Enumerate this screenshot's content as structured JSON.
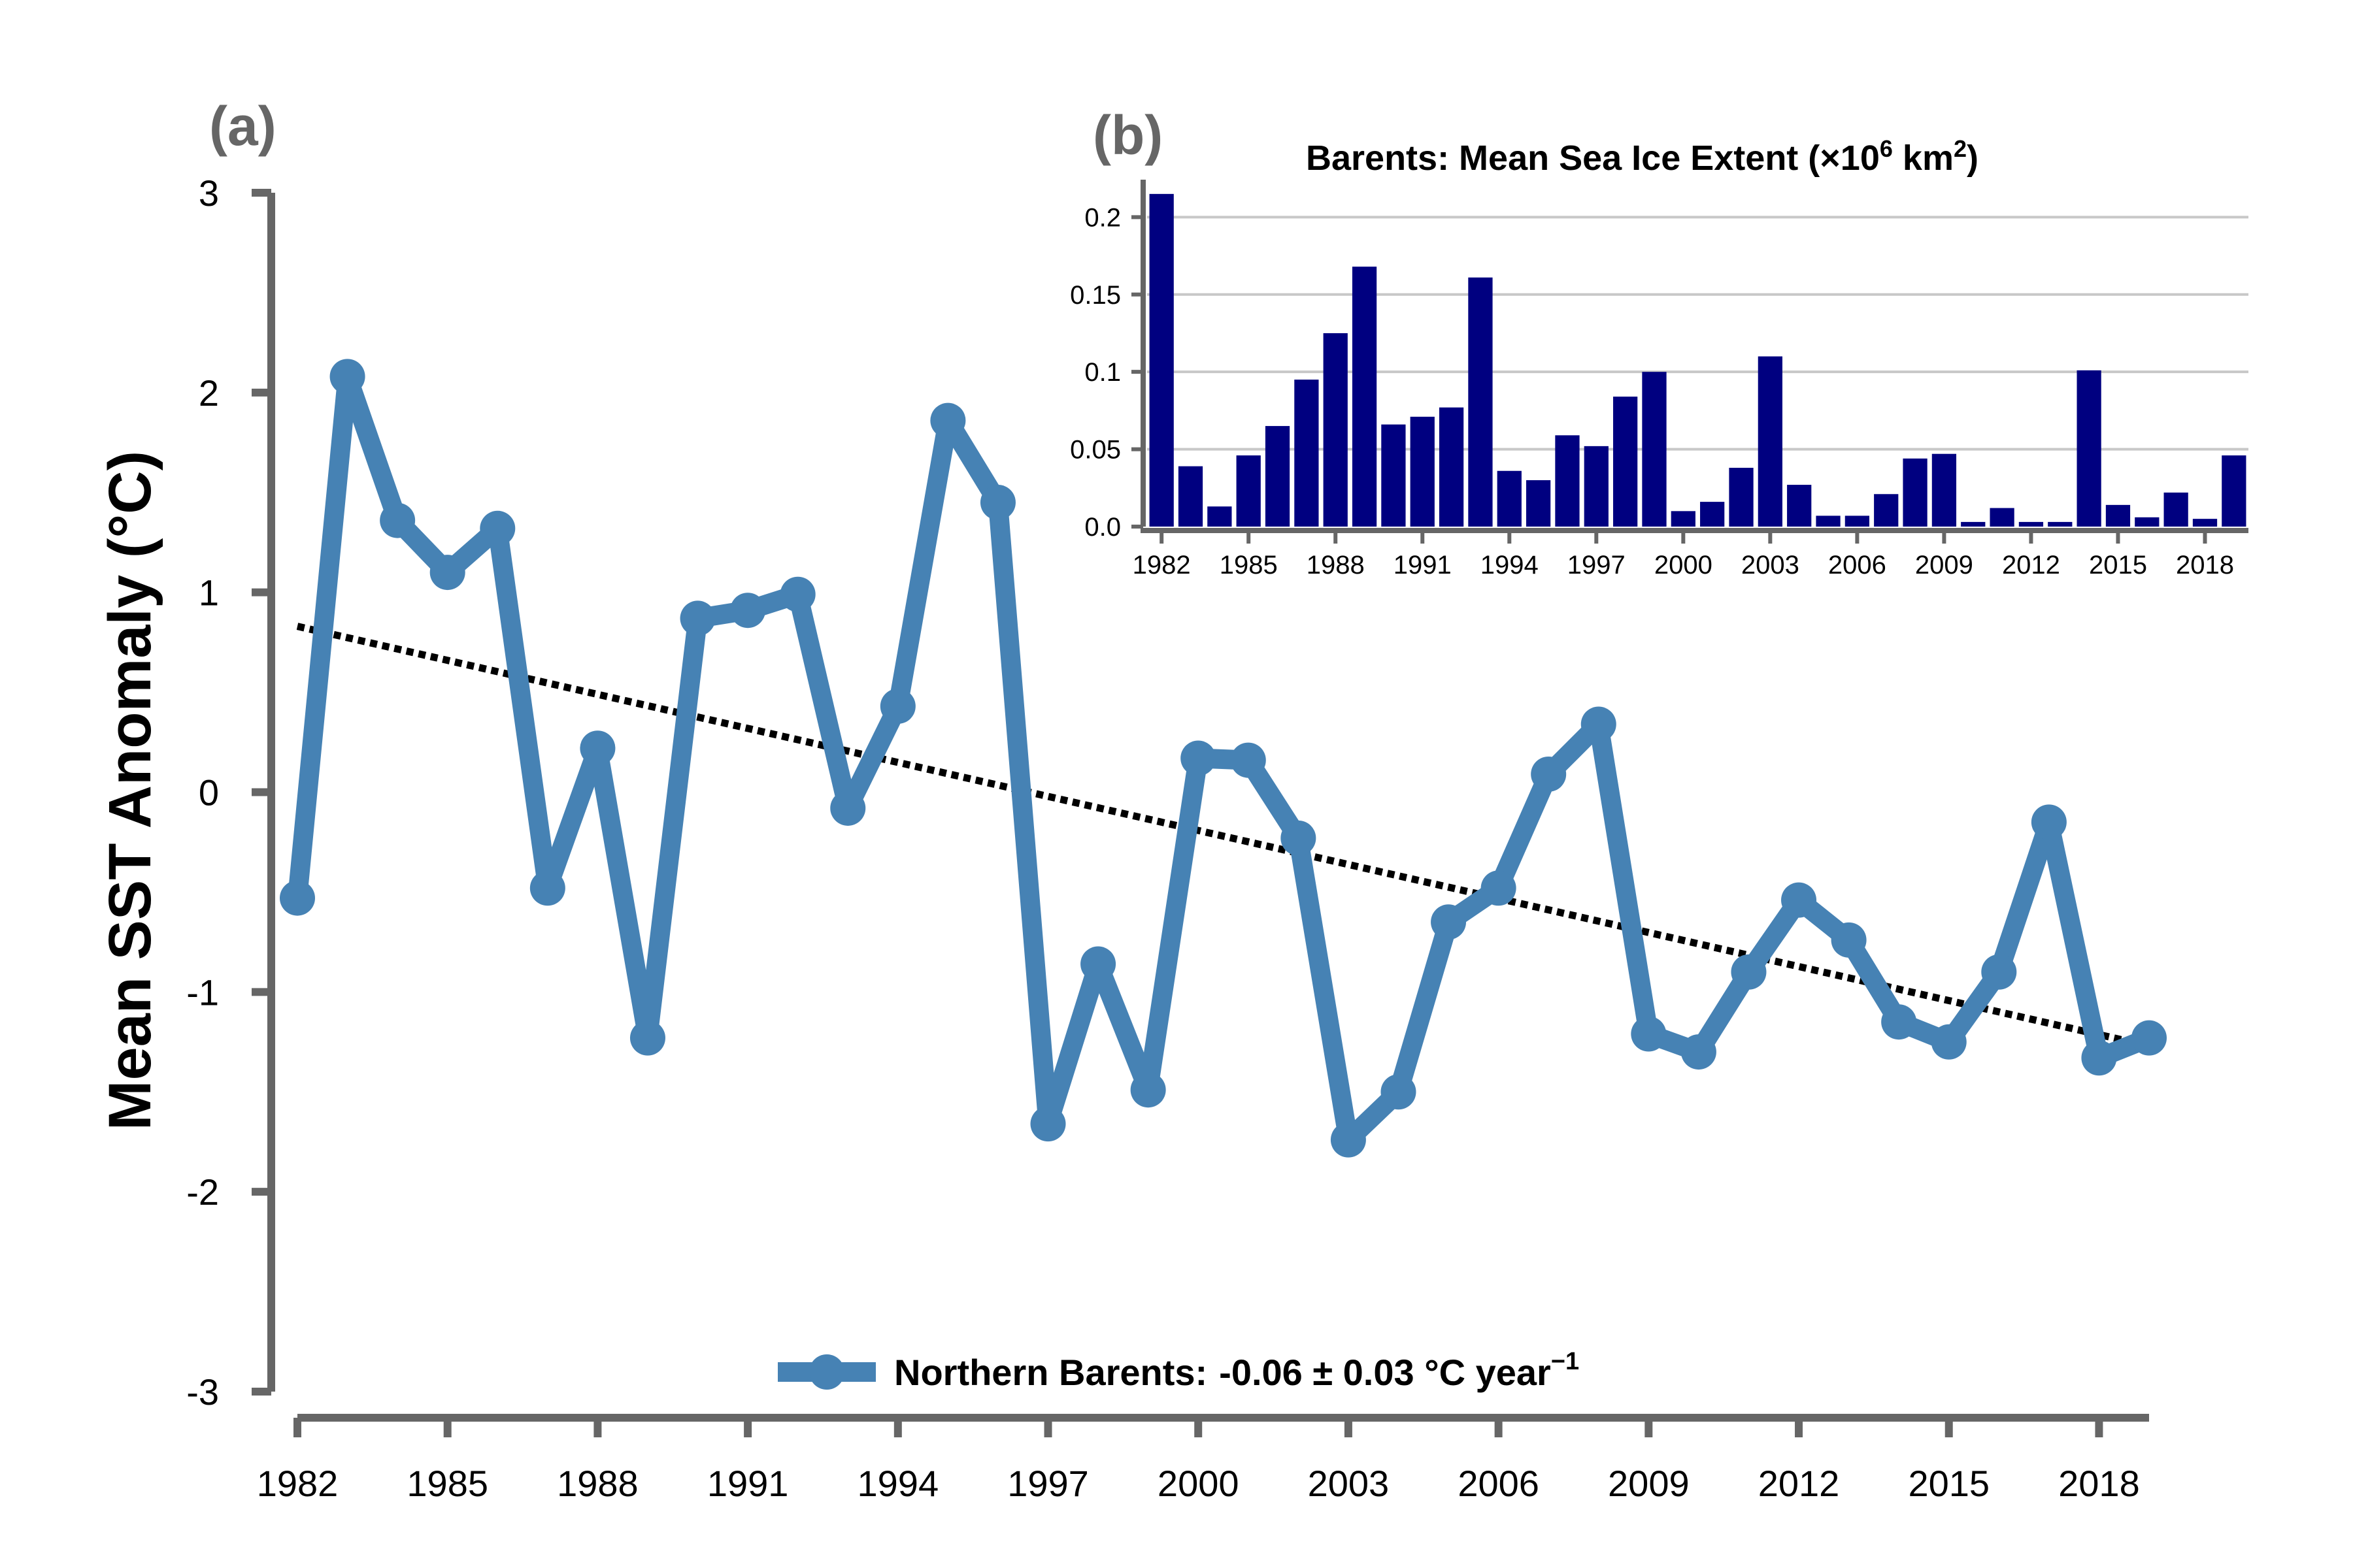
{
  "chart_data": [
    {
      "type": "line",
      "panel_label": "(a)",
      "ylabel": "Mean SST Anomaly (°C)",
      "xlim": [
        1982,
        2019
      ],
      "ylim": [
        -3,
        3
      ],
      "x_ticks": [
        1982,
        1985,
        1988,
        1991,
        1994,
        1997,
        2000,
        2003,
        2006,
        2009,
        2012,
        2015,
        2018
      ],
      "y_ticks": [
        3,
        2,
        1,
        0,
        -1,
        -2,
        -3
      ],
      "x": [
        1982,
        1983,
        1984,
        1985,
        1986,
        1987,
        1988,
        1989,
        1990,
        1991,
        1992,
        1993,
        1994,
        1995,
        1996,
        1997,
        1998,
        1999,
        2000,
        2001,
        2002,
        2003,
        2004,
        2005,
        2006,
        2007,
        2008,
        2009,
        2010,
        2011,
        2012,
        2013,
        2014,
        2015,
        2016,
        2017,
        2018,
        2019
      ],
      "series": [
        {
          "name": "Northern Barents: -0.06 ± 0.03 °C year⁻¹",
          "color": "#4682b4",
          "values": [
            -0.53,
            2.08,
            1.36,
            1.1,
            1.32,
            -0.48,
            0.22,
            -1.23,
            0.87,
            0.91,
            0.99,
            -0.08,
            0.43,
            1.86,
            1.45,
            -1.66,
            -0.86,
            -1.49,
            0.17,
            0.16,
            -0.23,
            -1.74,
            -1.5,
            -0.65,
            -0.48,
            0.09,
            0.34,
            -1.21,
            -1.3,
            -0.9,
            -0.54,
            -0.74,
            -1.15,
            -1.25,
            -0.9,
            -0.15,
            -1.33,
            -1.23
          ]
        }
      ],
      "trend": {
        "x": [
          1982,
          2019
        ],
        "y": [
          0.83,
          -1.27
        ],
        "color": "#000000",
        "style": "dotted"
      },
      "legend": {
        "placement": "bottom-center",
        "label_prefix": "Northern Barents:",
        "label_value": "-0.06 ± 0.03 °C year",
        "label_sup": "−1"
      },
      "grid": false
    },
    {
      "type": "bar",
      "panel_label": "(b)",
      "title_prefix": "Barents:  Mean Sea Ice Extent (×10",
      "title_sup1": "6",
      "title_mid": " km",
      "title_sup2": "2",
      "title_suffix": ")",
      "xlim": [
        1982,
        2019
      ],
      "ylim": [
        0,
        0.22
      ],
      "x_ticks": [
        1982,
        1985,
        1988,
        1991,
        1994,
        1997,
        2000,
        2003,
        2006,
        2009,
        2012,
        2015,
        2018
      ],
      "y_ticks": [
        "0.0",
        "0.05",
        "0.1",
        "0.15",
        "0.2"
      ],
      "y_tick_values": [
        0,
        0.05,
        0.1,
        0.15,
        0.2
      ],
      "bar_color": "#000080",
      "grid": true,
      "categories": [
        1982,
        1983,
        1984,
        1985,
        1986,
        1987,
        1988,
        1989,
        1990,
        1991,
        1992,
        1993,
        1994,
        1995,
        1996,
        1997,
        1998,
        1999,
        2000,
        2001,
        2002,
        2003,
        2004,
        2005,
        2006,
        2007,
        2008,
        2009,
        2010,
        2011,
        2012,
        2013,
        2014,
        2015,
        2016,
        2017,
        2018,
        2019
      ],
      "values": [
        0.215,
        0.039,
        0.013,
        0.046,
        0.065,
        0.095,
        0.125,
        0.168,
        0.066,
        0.071,
        0.077,
        0.161,
        0.036,
        0.03,
        0.059,
        0.052,
        0.084,
        0.1,
        0.01,
        0.016,
        0.038,
        0.11,
        0.027,
        0.007,
        0.007,
        0.021,
        0.044,
        0.047,
        0.003,
        0.012,
        0.003,
        0.003,
        0.101,
        0.014,
        0.006,
        0.022,
        0.005,
        0.046
      ]
    }
  ]
}
